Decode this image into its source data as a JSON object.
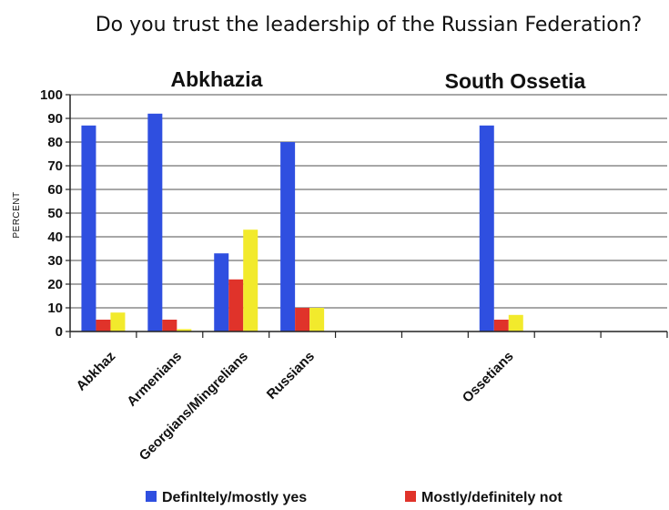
{
  "chart_data": {
    "type": "bar",
    "title": "Do you trust the leadership of the Russian Federation?",
    "ylabel": "PERCENT",
    "ylim": [
      0,
      100
    ],
    "yticks": [
      0,
      10,
      20,
      30,
      40,
      50,
      60,
      70,
      80,
      90,
      100
    ],
    "grid": true,
    "group_labels": [
      "Abkhazia",
      "South Ossetia"
    ],
    "categories": [
      "Abkhaz",
      "Armenians",
      "Georgians/Mingrelians",
      "Russians",
      "",
      "",
      "Ossetians",
      "",
      ""
    ],
    "series": [
      {
        "name": "Definltely/mostly yes",
        "color": "#2f4fe0",
        "values": [
          87,
          92,
          33,
          80,
          null,
          null,
          87,
          null,
          null
        ]
      },
      {
        "name": "Mostly/definitely not",
        "color": "#e0332a",
        "values": [
          5,
          5,
          22,
          10,
          null,
          null,
          5,
          null,
          null
        ]
      },
      {
        "name": "",
        "color": "#f2ea2c",
        "values": [
          8,
          1,
          43,
          10,
          null,
          null,
          7,
          null,
          null
        ]
      }
    ],
    "legend_entries": [
      "Definltely/mostly yes",
      "Mostly/definitely not"
    ],
    "legend_position": "bottom"
  }
}
